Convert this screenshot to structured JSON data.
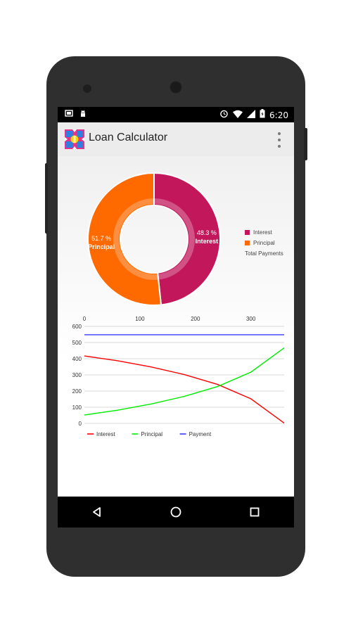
{
  "status_bar": {
    "time": "6:20",
    "left_icons": [
      "screenshot-icon",
      "android-debug-icon"
    ],
    "right_icons": [
      "alarm-icon",
      "wifi-icon",
      "signal-icon",
      "battery-icon"
    ]
  },
  "app_bar": {
    "title": "Loan Calculator",
    "logo_icon": "loan-calculator-logo-icon",
    "menu_icon": "overflow-menu-icon"
  },
  "donut": {
    "slices": [
      {
        "label": "Interest",
        "percent_text": "48.3 %",
        "value": 48.3,
        "color": "#c2185b"
      },
      {
        "label": "Principal",
        "percent_text": "51.7 %",
        "value": 51.7,
        "color": "#ff6a00"
      }
    ],
    "legend": [
      "Interest",
      "Principal"
    ],
    "legend_title": "Total Payments"
  },
  "chart_data": {
    "type": "line",
    "x_ticks": [
      "0",
      "100",
      "200",
      "300"
    ],
    "y_ticks": [
      "0",
      "100",
      "200",
      "300",
      "400",
      "500",
      "600"
    ],
    "xlim": [
      0,
      360
    ],
    "ylim": [
      0,
      600
    ],
    "series": [
      {
        "name": "Interest",
        "color": "#ff0000",
        "x": [
          0,
          60,
          120,
          180,
          240,
          300,
          360
        ],
        "y": [
          417,
          387,
          349,
          302,
          241,
          152,
          2
        ]
      },
      {
        "name": "Principal",
        "color": "#00ee00",
        "x": [
          0,
          60,
          120,
          180,
          240,
          300,
          360
        ],
        "y": [
          52,
          82,
          120,
          167,
          228,
          317,
          467
        ]
      },
      {
        "name": "Payment",
        "color": "#3a3aff",
        "x": [
          0,
          360
        ],
        "y": [
          548,
          548
        ]
      }
    ],
    "legend": [
      "Interest",
      "Principal",
      "Payment"
    ],
    "grid": true
  },
  "nav_bar": {
    "icons": [
      "back-icon",
      "home-icon",
      "recents-icon"
    ]
  }
}
